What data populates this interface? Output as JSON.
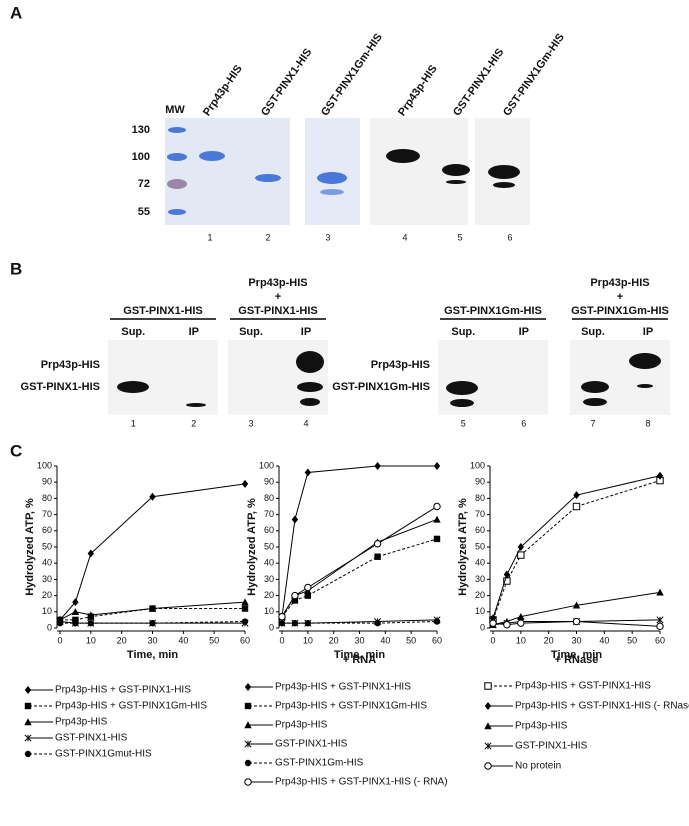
{
  "panel_a": {
    "label": "A",
    "mw_label": "MW",
    "mw": [
      130,
      100,
      72,
      55
    ],
    "lanes": [
      {
        "header": "Prp43p-HIS",
        "number": "1"
      },
      {
        "header": "GST-PINX1-HIS",
        "number": "2"
      },
      {
        "header": "GST-PINX1Gm-HIS",
        "number": "3"
      },
      {
        "header": "Prp43p-HIS",
        "number": "4"
      },
      {
        "header": "GST-PINX1-HIS",
        "number": "5"
      },
      {
        "header": "GST-PINX1Gm-HIS",
        "number": "6"
      }
    ]
  },
  "panel_b": {
    "label": "B",
    "row_labels_left": [
      "Prp43p-HIS",
      "GST-PINX1-HIS"
    ],
    "row_labels_right": [
      "Prp43p-HIS",
      "GST-PINX1Gm-HIS"
    ],
    "blots": [
      {
        "header": [
          "GST-PINX1-HIS"
        ],
        "columns": [
          "Sup.",
          "IP"
        ],
        "lanes": [
          "1",
          "2"
        ]
      },
      {
        "header": [
          "Prp43p-HIS",
          "+",
          "GST-PINX1-HIS"
        ],
        "columns": [
          "Sup.",
          "IP"
        ],
        "lanes": [
          "3",
          "4"
        ]
      },
      {
        "header": [
          "GST-PINX1Gm-HIS"
        ],
        "columns": [
          "Sup.",
          "IP"
        ],
        "lanes": [
          "5",
          "6"
        ]
      },
      {
        "header": [
          "Prp43p-HIS",
          "+",
          "GST-PINX1Gm-HIS"
        ],
        "columns": [
          "Sup.",
          "IP"
        ],
        "lanes": [
          "7",
          "8"
        ]
      }
    ]
  },
  "panel_c": {
    "label": "C"
  },
  "chart_data": [
    {
      "type": "line",
      "ylabel": "Hydrolyzed ATP, %",
      "xlabel": "Time, min",
      "x": [
        0,
        5,
        10,
        30,
        60
      ],
      "xlim": [
        0,
        60
      ],
      "xticks": [
        0,
        10,
        20,
        30,
        40,
        50,
        60
      ],
      "ylim": [
        0,
        100
      ],
      "yticks": [
        0,
        10,
        20,
        30,
        40,
        50,
        60,
        70,
        80,
        90,
        100
      ],
      "series": [
        {
          "name": "Prp43p-HIS + GST-PINX1-HIS",
          "color": "#000000",
          "marker": "diamond",
          "dash": false,
          "values": [
            5,
            16,
            46,
            81,
            89
          ]
        },
        {
          "name": "Prp43p-HIS + GST-PINX1Gm-HIS",
          "color": "#000000",
          "marker": "square",
          "dash": true,
          "values": [
            5,
            5,
            7,
            12,
            12
          ]
        },
        {
          "name": "Prp43p-HIS",
          "color": "#000000",
          "marker": "triangle",
          "dash": false,
          "values": [
            5,
            10,
            8,
            12,
            16
          ]
        },
        {
          "name": "GST-PINX1-HIS",
          "color": "#000000",
          "marker": "x",
          "dash": false,
          "values": [
            4,
            3,
            3,
            3,
            3
          ]
        },
        {
          "name": "GST-PINX1Gmut-HIS",
          "color": "#000000",
          "marker": "circle",
          "dash": true,
          "values": [
            3,
            3,
            3,
            3,
            4
          ]
        }
      ]
    },
    {
      "type": "line",
      "ylabel": "Hydrolyzed ATP, %",
      "xlabel": "Time, min",
      "subtitle": "+ RNA",
      "x": [
        0,
        5,
        10,
        37,
        60
      ],
      "xlim": [
        0,
        60
      ],
      "xticks": [
        0,
        10,
        20,
        30,
        40,
        50,
        60
      ],
      "ylim": [
        0,
        100
      ],
      "yticks": [
        0,
        10,
        20,
        30,
        40,
        50,
        60,
        70,
        80,
        90,
        100
      ],
      "series": [
        {
          "name": "Prp43p-HIS + GST-PINX1-HIS",
          "color": "#000000",
          "marker": "diamond",
          "dash": false,
          "values": [
            7,
            67,
            96,
            100,
            100
          ]
        },
        {
          "name": "Prp43p-HIS + GST-PINX1Gm-HIS",
          "color": "#000000",
          "marker": "square",
          "dash": true,
          "values": [
            7,
            17,
            20,
            44,
            55
          ]
        },
        {
          "name": "Prp43p-HIS",
          "color": "#000000",
          "marker": "triangle",
          "dash": false,
          "values": [
            7,
            20,
            23,
            53,
            67
          ]
        },
        {
          "name": "GST-PINX1-HIS",
          "color": "#000000",
          "marker": "x",
          "dash": false,
          "values": [
            3,
            3,
            3,
            4,
            5
          ]
        },
        {
          "name": "GST-PINX1Gm-HIS",
          "color": "#000000",
          "marker": "circle",
          "dash": true,
          "values": [
            3,
            3,
            3,
            3,
            4
          ]
        },
        {
          "name": "Prp43p-HIS + GST-PINX1-HIS (- RNA)",
          "color": "#000000",
          "marker": "open-circle",
          "dash": false,
          "values": [
            7,
            20,
            25,
            52,
            75
          ]
        }
      ]
    },
    {
      "type": "line",
      "ylabel": "Hydrolyzed ATP, %",
      "xlabel": "Time, min",
      "subtitle": "+ RNase",
      "x": [
        0,
        5,
        10,
        30,
        60
      ],
      "xlim": [
        0,
        60
      ],
      "xticks": [
        0,
        10,
        20,
        30,
        40,
        50,
        60
      ],
      "ylim": [
        0,
        100
      ],
      "yticks": [
        0,
        10,
        20,
        30,
        40,
        50,
        60,
        70,
        80,
        90,
        100
      ],
      "series": [
        {
          "name": "Prp43p-HIS + GST-PINX1-HIS",
          "color": "#000000",
          "marker": "open-square",
          "dash": true,
          "values": [
            5,
            29,
            45,
            75,
            91
          ]
        },
        {
          "name": "Prp43p-HIS + GST-PINX1-HIS (- RNase)",
          "color": "#000000",
          "marker": "diamond",
          "dash": false,
          "values": [
            6,
            33,
            50,
            82,
            94
          ]
        },
        {
          "name": "Prp43p-HIS",
          "color": "#000000",
          "marker": "triangle",
          "dash": false,
          "values": [
            2,
            4,
            7,
            14,
            22
          ]
        },
        {
          "name": "GST-PINX1-HIS",
          "color": "#000000",
          "marker": "x",
          "dash": false,
          "values": [
            2,
            3,
            4,
            4,
            5
          ]
        },
        {
          "name": "No protein",
          "color": "#000000",
          "marker": "open-circle",
          "dash": false,
          "values": [
            3,
            2,
            3,
            4,
            1
          ]
        }
      ]
    }
  ]
}
